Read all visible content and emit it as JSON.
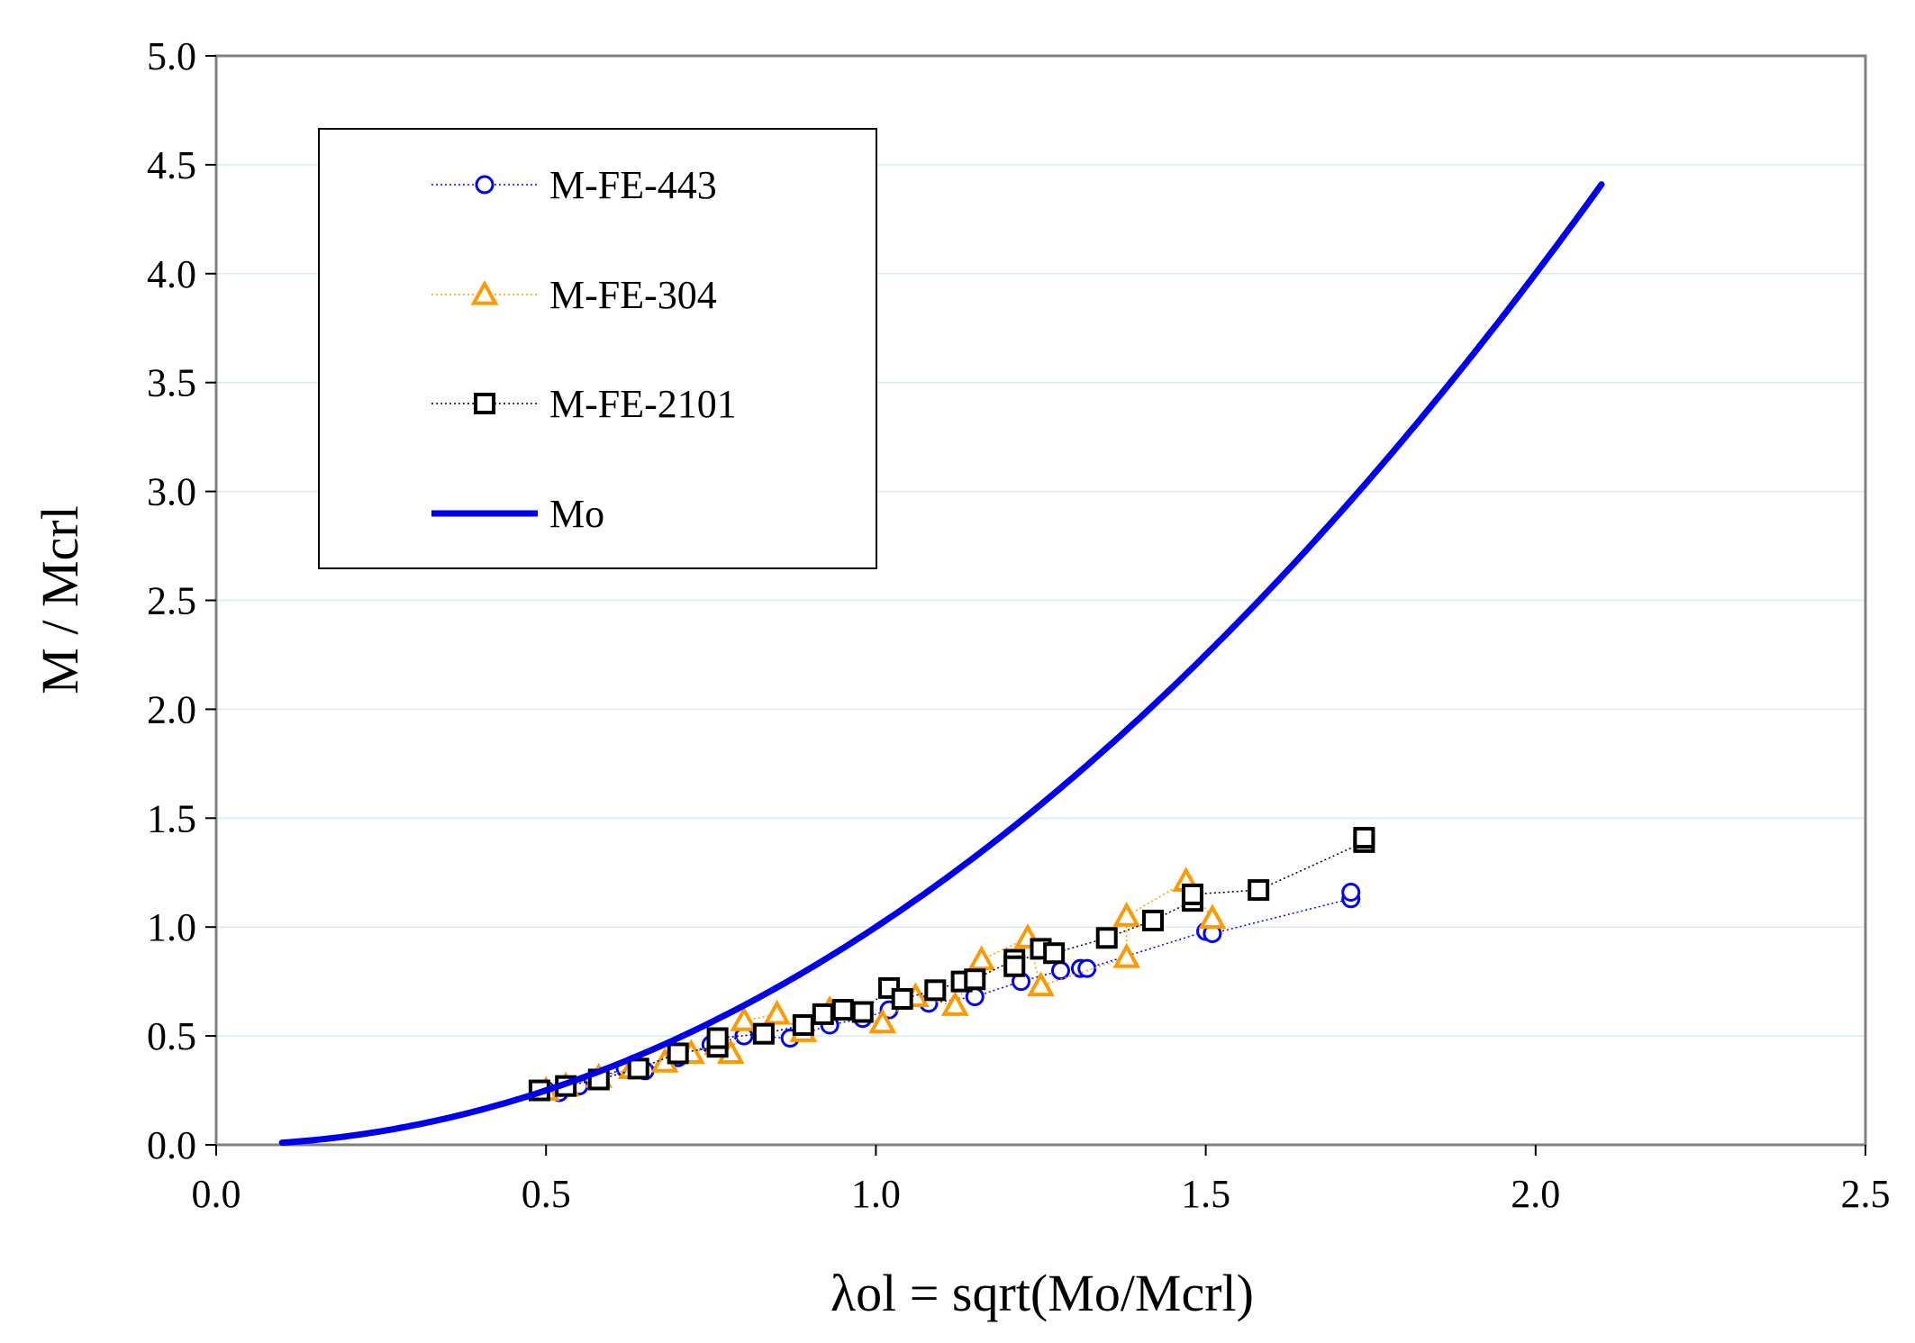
{
  "chart_data": {
    "type": "scatter",
    "title": "",
    "xlabel": "λol = sqrt(Mo/Mcrl)",
    "ylabel": "M / Mcrl",
    "xlim": [
      0.0,
      2.5
    ],
    "ylim": [
      0.0,
      5.0
    ],
    "x_ticks": [
      "0.0",
      "0.5",
      "1.0",
      "1.5",
      "2.0",
      "2.5"
    ],
    "y_ticks": [
      "0.0",
      "0.5",
      "1.0",
      "1.5",
      "2.0",
      "2.5",
      "3.0",
      "3.5",
      "4.0",
      "4.5",
      "5.0"
    ],
    "grid": "horizontal",
    "legend_position": "top-left",
    "series": [
      {
        "name": "M-FE-443",
        "marker": "circle",
        "color": "#0000ff",
        "line_style": "dotted",
        "x": [
          0.5,
          0.52,
          0.55,
          0.58,
          0.62,
          0.65,
          0.7,
          0.75,
          0.8,
          0.87,
          0.93,
          0.98,
          1.02,
          1.08,
          1.15,
          1.22,
          1.28,
          1.31,
          1.32,
          1.5,
          1.51,
          1.72,
          1.72
        ],
        "y": [
          0.25,
          0.24,
          0.27,
          0.31,
          0.35,
          0.34,
          0.4,
          0.46,
          0.5,
          0.49,
          0.55,
          0.58,
          0.62,
          0.65,
          0.68,
          0.75,
          0.8,
          0.81,
          0.81,
          0.98,
          0.97,
          1.13,
          1.16
        ]
      },
      {
        "name": "M-FE-304",
        "marker": "triangle",
        "color": "#ff9900",
        "line_style": "dotted",
        "x": [
          0.5,
          0.53,
          0.58,
          0.63,
          0.68,
          0.72,
          0.76,
          0.78,
          0.8,
          0.85,
          0.89,
          0.93,
          1.01,
          1.06,
          1.12,
          1.16,
          1.23,
          1.25,
          1.38,
          1.38,
          1.47,
          1.51
        ],
        "y": [
          0.25,
          0.27,
          0.31,
          0.35,
          0.38,
          0.42,
          0.46,
          0.42,
          0.57,
          0.6,
          0.52,
          0.62,
          0.56,
          0.68,
          0.64,
          0.85,
          0.95,
          0.73,
          0.86,
          1.05,
          1.21,
          1.04
        ]
      },
      {
        "name": "M-FE-2101",
        "marker": "square",
        "color": "#000000",
        "line_style": "dotted",
        "x": [
          0.49,
          0.53,
          0.58,
          0.64,
          0.7,
          0.76,
          0.76,
          0.83,
          0.89,
          0.92,
          0.95,
          0.98,
          1.02,
          1.04,
          1.09,
          1.13,
          1.15,
          1.21,
          1.21,
          1.25,
          1.27,
          1.35,
          1.42,
          1.48,
          1.48,
          1.58,
          1.74,
          1.74
        ],
        "y": [
          0.25,
          0.27,
          0.3,
          0.35,
          0.42,
          0.45,
          0.49,
          0.51,
          0.55,
          0.6,
          0.62,
          0.61,
          0.72,
          0.67,
          0.71,
          0.75,
          0.76,
          0.85,
          0.82,
          0.9,
          0.88,
          0.95,
          1.03,
          1.12,
          1.15,
          1.17,
          1.39,
          1.41
        ]
      },
      {
        "name": "Mo",
        "type": "line",
        "color": "#0000ee",
        "line_style": "solid",
        "equation": "y = x^2",
        "x_range": [
          0.1,
          2.1
        ]
      }
    ]
  }
}
